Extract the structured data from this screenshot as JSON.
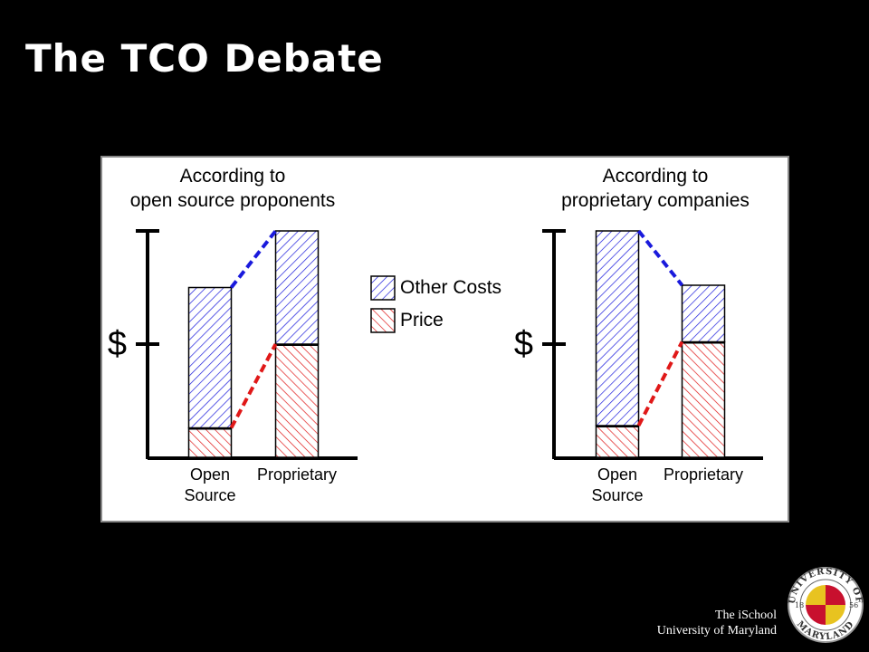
{
  "slide": {
    "title": "The TCO Debate",
    "footer": [
      "The iSchool",
      "University of Maryland"
    ]
  },
  "seal": {
    "top": "UNIVERSITY OF",
    "bottom": "MARYLAND",
    "years": [
      "18",
      "56"
    ]
  },
  "legend": [
    {
      "name": "Other Costs",
      "color": "#1a1adc"
    },
    {
      "name": "Price",
      "color": "#e01818"
    }
  ],
  "chart_data": [
    {
      "type": "bar",
      "stacked": true,
      "title": "According to\nopen source proponents",
      "categories": [
        "Open Source",
        "Proprietary"
      ],
      "series": [
        {
          "values": [
            62,
            50
          ]
        },
        {
          "values": [
            13,
            50
          ]
        }
      ],
      "ylim": [
        0,
        100
      ],
      "yticks": [
        {
          "value": 50,
          "label": "$"
        }
      ]
    },
    {
      "type": "bar",
      "stacked": true,
      "title": "According to\nproprietary companies",
      "categories": [
        "Open Source",
        "Proprietary"
      ],
      "series": [
        {
          "values": [
            86,
            25
          ]
        },
        {
          "values": [
            14,
            51
          ]
        }
      ],
      "ylim": [
        0,
        100
      ],
      "yticks": [
        {
          "value": 50,
          "label": "$"
        }
      ]
    }
  ]
}
